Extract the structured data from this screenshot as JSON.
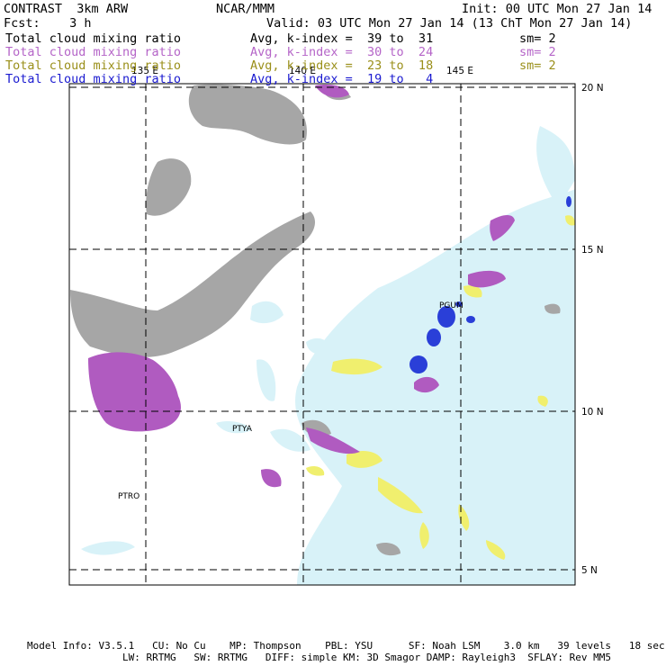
{
  "header": {
    "title_left": "CONTRAST  3km ARW",
    "title_center": "NCAR/MMM",
    "init": "Init: 00 UTC Mon 27 Jan 14",
    "fcst": "Fcst:    3 h",
    "valid": "Valid: 03 UTC Mon 27 Jan 14 (13 ChT Mon 27 Jan 14)"
  },
  "fields": [
    {
      "name": "Total cloud mixing ratio",
      "stat": "Avg, k-index =  39 to  31",
      "sm": "sm= 2",
      "color": "#000000"
    },
    {
      "name": "Total cloud mixing ratio",
      "stat": "Avg, k-index =  30 to  24",
      "sm": "sm= 2",
      "color": "#b565c8"
    },
    {
      "name": "Total cloud mixing ratio",
      "stat": "Avg, k-index =  23 to  18",
      "sm": "sm= 2",
      "color": "#9a8f1a"
    },
    {
      "name": "Total cloud mixing ratio",
      "stat": "Avg, k-index =  19 to   4",
      "sm": "",
      "color": "#1a1ad0"
    }
  ],
  "map": {
    "lon_labels": [
      "135 E",
      "140 E",
      "145 E"
    ],
    "lat_labels": [
      "20 N",
      "15 N",
      "10 N",
      "5 N"
    ],
    "stations": [
      "PGUM",
      "PTYA",
      "PTRO"
    ],
    "colors": {
      "high_cloud": "#a6a6a6",
      "mid_cloud": "#b05bc0",
      "low_cloud": "#f0ef6e",
      "thin_cloud": "#d8f2f8",
      "deep_convection": "#2a3fd8"
    }
  },
  "footer": {
    "line1": "Model Info: V3.5.1   CU: No Cu    MP: Thompson    PBL: YSU      SF: Noah LSM    3.0 km   39 levels   18 sec",
    "line2": "                LW: RRTMG   SW: RRTMG   DIFF: simple KM: 3D Smagor DAMP: Rayleigh3  SFLAY: Rev MM5"
  }
}
